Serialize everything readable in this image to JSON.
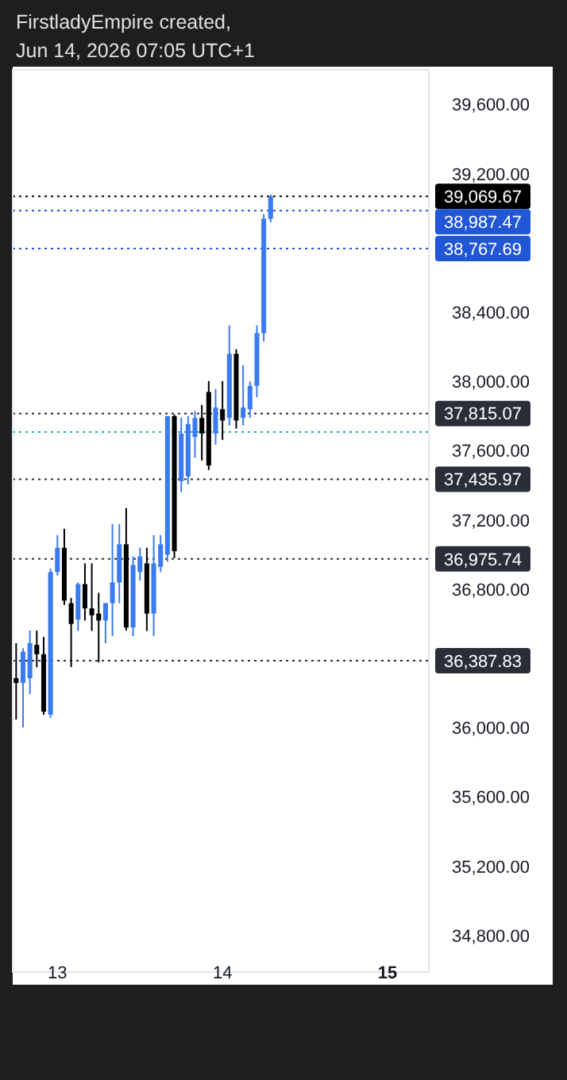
{
  "chart_data": {
    "type": "candlestick",
    "title": "FirstladyEmpire created,",
    "subtitle": "Jun 14, 2026 07:05 UTC+1",
    "x": [
      "2026-06-12T18:00",
      "2026-06-12T19:00",
      "2026-06-12T20:00",
      "2026-06-12T21:00",
      "2026-06-12T22:00",
      "2026-06-12T23:00",
      "2026-06-13T00:00",
      "2026-06-13T01:00",
      "2026-06-13T02:00",
      "2026-06-13T03:00",
      "2026-06-13T04:00",
      "2026-06-13T05:00",
      "2026-06-13T06:00",
      "2026-06-13T07:00",
      "2026-06-13T08:00",
      "2026-06-13T09:00",
      "2026-06-13T10:00",
      "2026-06-13T11:00",
      "2026-06-13T12:00",
      "2026-06-13T13:00",
      "2026-06-13T14:00",
      "2026-06-13T15:00",
      "2026-06-13T16:00",
      "2026-06-13T17:00",
      "2026-06-13T18:00",
      "2026-06-13T19:00",
      "2026-06-13T20:00",
      "2026-06-13T21:00",
      "2026-06-13T22:00",
      "2026-06-13T23:00",
      "2026-06-14T00:00",
      "2026-06-14T01:00",
      "2026-06-14T02:00",
      "2026-06-14T03:00",
      "2026-06-14T04:00",
      "2026-06-14T05:00",
      "2026-06-14T06:00",
      "2026-06-14T07:00"
    ],
    "ohlc": [
      [
        36287,
        36489,
        36048,
        36259
      ],
      [
        36259,
        36460,
        36002,
        36440
      ],
      [
        36287,
        36562,
        36195,
        36489
      ],
      [
        36480,
        36562,
        36350,
        36425
      ],
      [
        36425,
        36525,
        36076,
        36094
      ],
      [
        36076,
        36920,
        36057,
        36900
      ],
      [
        36900,
        37113,
        36880,
        37040
      ],
      [
        37040,
        37150,
        36710,
        36735
      ],
      [
        36720,
        36750,
        36351,
        36600
      ],
      [
        36625,
        36840,
        36560,
        36830
      ],
      [
        36830,
        36950,
        36620,
        36690
      ],
      [
        36690,
        36950,
        36560,
        36650
      ],
      [
        36660,
        36780,
        36378,
        36620
      ],
      [
        36620,
        36720,
        36489,
        36720
      ],
      [
        36720,
        37177,
        36530,
        36840
      ],
      [
        36840,
        37177,
        36720,
        37060
      ],
      [
        37060,
        37269,
        36562,
        36580
      ],
      [
        36580,
        36990,
        36530,
        36940
      ],
      [
        36900,
        37040,
        36850,
        36990
      ],
      [
        36950,
        37040,
        36560,
        36660
      ],
      [
        36660,
        37113,
        36530,
        36950
      ],
      [
        36930,
        37113,
        36900,
        37060
      ],
      [
        37000,
        37801,
        36960,
        37800
      ],
      [
        37800,
        37810,
        36980,
        37020
      ],
      [
        37425,
        37792,
        37361,
        37700
      ],
      [
        37452,
        37801,
        37406,
        37755
      ],
      [
        37680,
        37830,
        37560,
        37790
      ],
      [
        37790,
        37865,
        37544,
        37700
      ],
      [
        37940,
        38003,
        37489,
        37515
      ],
      [
        37700,
        37957,
        37636,
        37850
      ],
      [
        37840,
        38003,
        37663,
        37775
      ],
      [
        37790,
        38324,
        37746,
        38160
      ],
      [
        38160,
        38187,
        37728,
        37775
      ],
      [
        37790,
        38095,
        37746,
        37850
      ],
      [
        37840,
        38000,
        37790,
        37975
      ],
      [
        37975,
        38324,
        37910,
        38280
      ],
      [
        38280,
        38967,
        38232,
        38940
      ],
      [
        38940,
        39080,
        38920,
        39069.67
      ]
    ],
    "colors": [
      "#000000",
      "#3b7bf0",
      "#3b7bf0",
      "#000000",
      "#000000",
      "#3b7bf0",
      "#3b7bf0",
      "#000000",
      "#000000",
      "#3b7bf0",
      "#000000",
      "#000000",
      "#000000",
      "#3b7bf0",
      "#3b7bf0",
      "#3b7bf0",
      "#000000",
      "#3b7bf0",
      "#3b7bf0",
      "#000000",
      "#3b7bf0",
      "#3b7bf0",
      "#3b7bf0",
      "#000000",
      "#3b7bf0",
      "#3b7bf0",
      "#3b7bf0",
      "#000000",
      "#000000",
      "#3b7bf0",
      "#000000",
      "#3b7bf0",
      "#000000",
      "#3b7bf0",
      "#3b7bf0",
      "#3b7bf0",
      "#3b7bf0",
      "#3b7bf0"
    ],
    "xlim": [
      "2026-06-12T17:30",
      "2026-06-15T06:00"
    ],
    "xticks": [
      {
        "value": "2026-06-13",
        "label": "13"
      },
      {
        "value": "2026-06-14",
        "label": "14"
      },
      {
        "value": "2026-06-15",
        "label": "15"
      }
    ],
    "ylim": [
      34590,
      39800
    ],
    "yticks": [
      {
        "value": 34800,
        "label": "34,800.00"
      },
      {
        "value": 35200,
        "label": "35,200.00"
      },
      {
        "value": 35600,
        "label": "35,600.00"
      },
      {
        "value": 36000,
        "label": "36,000.00"
      },
      {
        "value": 36800,
        "label": "36,800.00"
      },
      {
        "value": 37200,
        "label": "37,200.00"
      },
      {
        "value": 37600,
        "label": "37,600.00"
      },
      {
        "value": 38000,
        "label": "38,000.00"
      },
      {
        "value": 38400,
        "label": "38,400.00"
      },
      {
        "value": 39200,
        "label": "39,200.00"
      },
      {
        "value": 39600,
        "label": "39,600.00"
      }
    ],
    "ref_lines": [
      {
        "axis": "y",
        "value": 39069.67,
        "label": "39,069.67",
        "color": "#000000",
        "line_style": "dotted"
      },
      {
        "axis": "y",
        "value": 38987.47,
        "label": "38,987.47",
        "color": "#2157d6",
        "line_style": "dotted"
      },
      {
        "axis": "y",
        "value": 38767.69,
        "label": "38,767.69",
        "color": "#2157d6",
        "line_style": "dotted"
      },
      {
        "axis": "y",
        "value": 37815.07,
        "label": "37,815.07",
        "color": "#2a2e39",
        "line_style": "dotted"
      },
      {
        "axis": "y",
        "value": 37709,
        "label": null,
        "color": "#26a6b5",
        "line_style": "dotted"
      },
      {
        "axis": "y",
        "value": 37435.97,
        "label": "37,435.97",
        "color": "#2a2e39",
        "line_style": "dotted"
      },
      {
        "axis": "y",
        "value": 36975.74,
        "label": "36,975.74",
        "color": "#2a2e39",
        "line_style": "dotted"
      },
      {
        "axis": "y",
        "value": 36387.83,
        "label": "36,387.83",
        "color": "#2a2e39",
        "line_style": "dotted"
      }
    ]
  }
}
